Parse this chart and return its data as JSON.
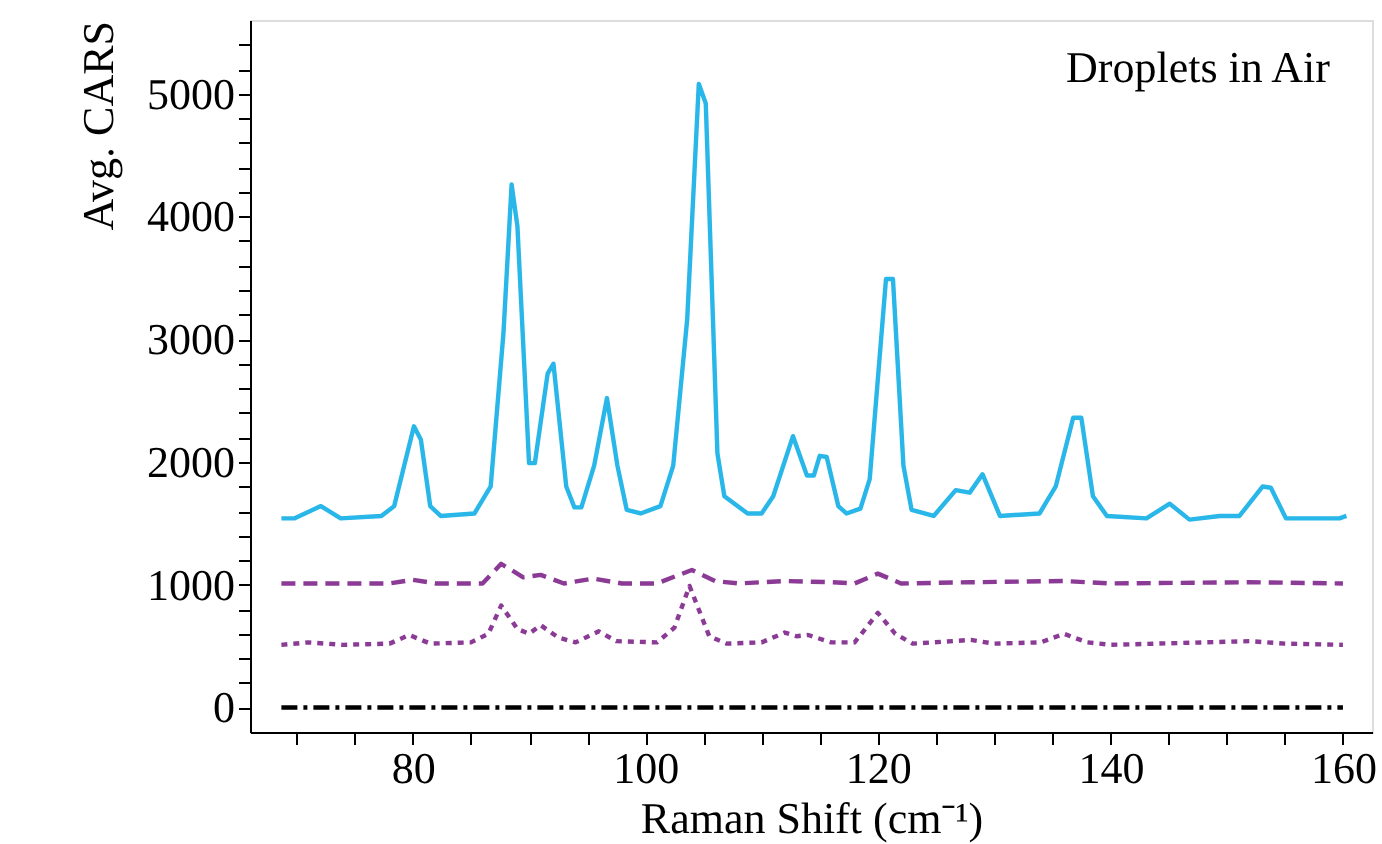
{
  "chart_data": {
    "type": "line",
    "xlabel": "Raman Shift (cm⁻¹)",
    "ylabel": "Avg. CARS",
    "annotations": [
      "Droplets in Air"
    ],
    "xlim": [
      66,
      162.5
    ],
    "ylim": [
      -200,
      5600
    ],
    "xticks": [
      {
        "value": 70,
        "label": null
      },
      {
        "value": 75,
        "label": null
      },
      80,
      {
        "value": 85,
        "label": null
      },
      {
        "value": 90,
        "label": null
      },
      {
        "value": 95,
        "label": null
      },
      100,
      {
        "value": 105,
        "label": null
      },
      {
        "value": 110,
        "label": null
      },
      {
        "value": 115,
        "label": null
      },
      120,
      {
        "value": 125,
        "label": null
      },
      {
        "value": 130,
        "label": null
      },
      {
        "value": 135,
        "label": null
      },
      140,
      {
        "value": 145,
        "label": null
      },
      {
        "value": 150,
        "label": null
      },
      {
        "value": 155,
        "label": null
      },
      160
    ],
    "yticks": [
      0,
      {
        "value": 200,
        "label": null
      },
      {
        "value": 400,
        "label": null
      },
      {
        "value": 600,
        "label": null
      },
      {
        "value": 800,
        "label": null
      },
      1000,
      {
        "value": 1200,
        "label": null
      },
      {
        "value": 1400,
        "label": null
      },
      {
        "value": 1600,
        "label": null
      },
      {
        "value": 1800,
        "label": null
      },
      2000,
      {
        "value": 2200,
        "label": null
      },
      {
        "value": 2400,
        "label": null
      },
      {
        "value": 2600,
        "label": null
      },
      {
        "value": 2800,
        "label": null
      },
      3000,
      {
        "value": 3200,
        "label": null
      },
      {
        "value": 3400,
        "label": null
      },
      {
        "value": 3600,
        "label": null
      },
      {
        "value": 3800,
        "label": null
      },
      4000,
      {
        "value": 4200,
        "label": null
      },
      {
        "value": 4400,
        "label": null
      },
      {
        "value": 4600,
        "label": null
      },
      {
        "value": 4800,
        "label": null
      },
      5000,
      {
        "value": 5200,
        "label": null
      },
      {
        "value": 5400,
        "label": null
      }
    ],
    "grid": false,
    "marker": "none",
    "series": [
      {
        "color": "#29b6e8",
        "line_style": "solid",
        "x": [
          68.7,
          69.8,
          72.1,
          73.8,
          77.3,
          78.4,
          80.1,
          80.7,
          81.5,
          82.4,
          85.3,
          86.7,
          87.8,
          88.5,
          89.0,
          90.0,
          90.5,
          91.6,
          92.1,
          93.2,
          93.9,
          94.5,
          95.6,
          96.7,
          97.6,
          98.4,
          99.6,
          101.3,
          102.4,
          103.6,
          104.6,
          105.2,
          106.2,
          106.8,
          108.8,
          110.0,
          111.0,
          112.7,
          113.9,
          114.5,
          115.0,
          115.6,
          116.6,
          117.3,
          118.5,
          119.3,
          120.7,
          121.3,
          122.2,
          122.9,
          124.8,
          126.7,
          127.9,
          129.0,
          130.5,
          133.9,
          135.3,
          136.8,
          137.5,
          138.5,
          139.7,
          143.1,
          145.1,
          146.8,
          149.4,
          151.1,
          153.1,
          153.8,
          155.1,
          159.7,
          160.3
        ],
        "values": [
          1540,
          1540,
          1640,
          1540,
          1560,
          1640,
          2290,
          2180,
          1640,
          1560,
          1580,
          1800,
          3050,
          4260,
          3920,
          1990,
          1990,
          2720,
          2800,
          1800,
          1630,
          1630,
          1970,
          2520,
          1970,
          1610,
          1580,
          1640,
          1970,
          3160,
          5080,
          4920,
          2070,
          1720,
          1580,
          1580,
          1720,
          2210,
          1890,
          1890,
          2050,
          2040,
          1640,
          1580,
          1620,
          1860,
          3490,
          3490,
          1970,
          1610,
          1560,
          1770,
          1750,
          1900,
          1560,
          1580,
          1800,
          2360,
          2360,
          1720,
          1560,
          1540,
          1660,
          1530,
          1560,
          1560,
          1800,
          1790,
          1540,
          1540,
          1560
        ]
      },
      {
        "color": "#8b3a96",
        "line_style": "dashed",
        "x": [
          68.7,
          78,
          80,
          82,
          86,
          87.6,
          89.5,
          91,
          93,
          95.5,
          98,
          101,
          104,
          106,
          108,
          112,
          116,
          118,
          120,
          122,
          128,
          136,
          140,
          152,
          160
        ],
        "values": [
          1010,
          1010,
          1040,
          1010,
          1010,
          1170,
          1060,
          1080,
          1010,
          1050,
          1010,
          1010,
          1120,
          1030,
          1010,
          1030,
          1020,
          1010,
          1090,
          1010,
          1020,
          1030,
          1010,
          1020,
          1010
        ]
      },
      {
        "color": "#8b3a96",
        "line_style": "dotted",
        "x": [
          68.7,
          71,
          74,
          78,
          79.7,
          81.5,
          85,
          86.5,
          87.6,
          89,
          90,
          91,
          92.5,
          94,
          96,
          97.5,
          101,
          102.5,
          103.8,
          105.5,
          107,
          110,
          112,
          113,
          114,
          116,
          118,
          120,
          121.5,
          123,
          128,
          130,
          134,
          136,
          138,
          140,
          152,
          155,
          160
        ],
        "values": [
          510,
          530,
          510,
          520,
          590,
          520,
          530,
          600,
          830,
          640,
          600,
          670,
          570,
          530,
          620,
          540,
          530,
          650,
          990,
          580,
          520,
          530,
          610,
          580,
          590,
          530,
          530,
          770,
          600,
          520,
          550,
          520,
          530,
          600,
          530,
          510,
          540,
          520,
          510
        ]
      },
      {
        "color": "#000000",
        "line_style": "dashdot",
        "x": [
          68.7,
          160
        ],
        "values": [
          0,
          0
        ]
      }
    ]
  }
}
